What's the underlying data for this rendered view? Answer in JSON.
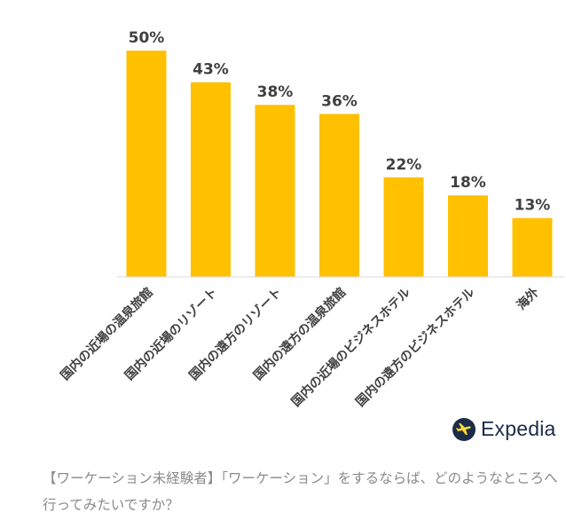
{
  "chart_data": {
    "type": "bar",
    "categories": [
      "国内の近場の温泉旅館",
      "国内の近場のリゾート",
      "国内の遠方のリゾート",
      "国内の遠方の温泉旅館",
      "国内の近場のビジネスホテル",
      "国内の遠方のビジネスホテル",
      "海外"
    ],
    "values": [
      50,
      43,
      38,
      36,
      22,
      18,
      13
    ],
    "value_labels": [
      "50%",
      "43%",
      "38%",
      "36%",
      "22%",
      "18%",
      "13%"
    ],
    "ylim": [
      0,
      50
    ],
    "bar_color": "#ffc000",
    "grid": false,
    "legend": false
  },
  "brand": {
    "name": "Expedia",
    "color": "#1b2b48",
    "accent": "#fddb32"
  },
  "caption": "【ワーケーション未経験者】「ワーケーション」をするならば、どのようなところへ行ってみたいですか？"
}
